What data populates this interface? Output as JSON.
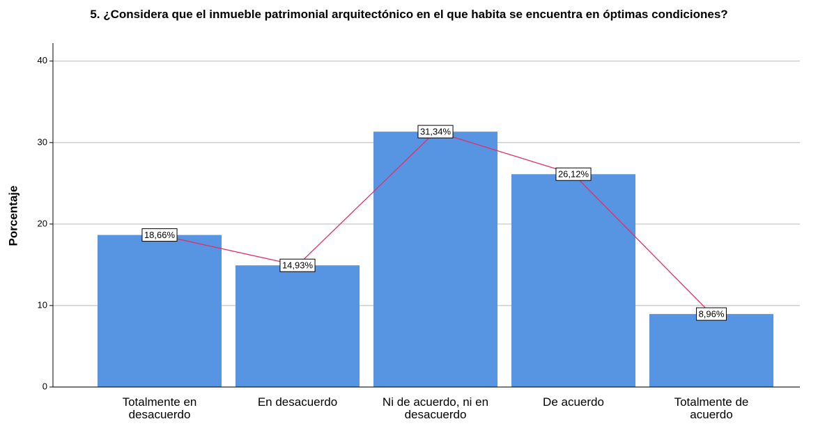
{
  "chart_data": {
    "type": "bar",
    "title": "5. ¿Considera que el inmueble patrimonial arquitectónico en el que habita se encuentra en óptimas condiciones?",
    "y_label": "Porcentaje",
    "categories": [
      "Totalmente en desacuerdo",
      "En desacuerdo",
      "Ni de acuerdo, ni en desacuerdo",
      "De acuerdo",
      "Totalmente de acuerdo"
    ],
    "values": [
      18.66,
      14.93,
      31.34,
      26.12,
      8.96
    ],
    "value_labels": [
      "18,66%",
      "14,93%",
      "31,34%",
      "26,12%",
      "8,96%"
    ],
    "color": "#5794e2",
    "line_color": "#e0306a",
    "ylim": [
      0,
      42.2
    ],
    "yticks": [
      0,
      10,
      20,
      30,
      40
    ],
    "grid": true
  }
}
